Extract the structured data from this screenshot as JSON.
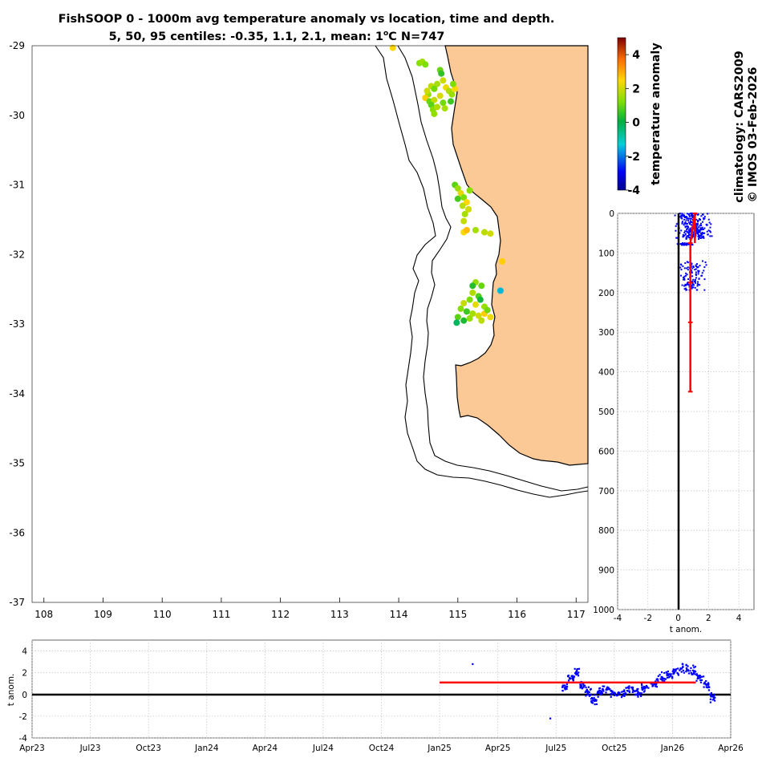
{
  "chart_data": [
    {
      "type": "scatter",
      "panel": "map",
      "title": "FishSOOP 0 - 1000m avg temperature anomaly vs location, time and depth.",
      "subtitle_prefix": "5, 50, 95 centiles: -0.35, 1.1, 2.1, mean: 1",
      "subtitle_sup": "o",
      "subtitle_suffix": "C N=747",
      "xlim": [
        107.8,
        117.2
      ],
      "ylim": [
        -37,
        -29
      ],
      "x_ticks": [
        "108",
        "109",
        "110",
        "111",
        "112",
        "113",
        "114",
        "115",
        "116",
        "117"
      ],
      "y_ticks": [
        "-29",
        "-30",
        "-31",
        "-32",
        "-33",
        "-34",
        "-35",
        "-36",
        "-37"
      ],
      "land_color": "#fbc995",
      "points": [
        {
          "lon": 113.9,
          "lat": -29.03,
          "v": 2.5
        },
        {
          "lon": 114.35,
          "lat": -29.25,
          "v": 1.3
        },
        {
          "lon": 114.4,
          "lat": -29.23,
          "v": 1.5
        },
        {
          "lon": 114.45,
          "lat": -29.27,
          "v": 1.2
        },
        {
          "lon": 114.7,
          "lat": -29.35,
          "v": 1.0
        },
        {
          "lon": 114.72,
          "lat": -29.4,
          "v": 0.5
        },
        {
          "lon": 114.75,
          "lat": -29.5,
          "v": 2.0
        },
        {
          "lon": 114.65,
          "lat": -29.55,
          "v": 1.6
        },
        {
          "lon": 114.55,
          "lat": -29.58,
          "v": 1.8
        },
        {
          "lon": 114.6,
          "lat": -29.62,
          "v": 1.1
        },
        {
          "lon": 114.8,
          "lat": -29.6,
          "v": 2.3
        },
        {
          "lon": 114.85,
          "lat": -29.65,
          "v": 1.7
        },
        {
          "lon": 114.5,
          "lat": -29.7,
          "v": 1.4
        },
        {
          "lon": 114.45,
          "lat": -29.75,
          "v": 2.6
        },
        {
          "lon": 114.52,
          "lat": -29.8,
          "v": 1.0
        },
        {
          "lon": 114.6,
          "lat": -29.78,
          "v": 1.9
        },
        {
          "lon": 114.7,
          "lat": -29.72,
          "v": 2.1
        },
        {
          "lon": 114.9,
          "lat": -29.7,
          "v": 1.5
        },
        {
          "lon": 114.95,
          "lat": -29.62,
          "v": 2.4
        },
        {
          "lon": 114.92,
          "lat": -29.55,
          "v": 1.2
        },
        {
          "lon": 114.55,
          "lat": -29.85,
          "v": 0.9
        },
        {
          "lon": 114.58,
          "lat": -29.92,
          "v": 1.3
        },
        {
          "lon": 114.65,
          "lat": -29.88,
          "v": 1.7
        },
        {
          "lon": 114.75,
          "lat": -29.82,
          "v": 1.1
        },
        {
          "lon": 114.78,
          "lat": -29.9,
          "v": 1.6
        },
        {
          "lon": 114.6,
          "lat": -29.98,
          "v": 1.4
        },
        {
          "lon": 114.88,
          "lat": -29.8,
          "v": 0.6
        },
        {
          "lon": 114.48,
          "lat": -29.65,
          "v": 2.0
        },
        {
          "lon": 114.95,
          "lat": -31.0,
          "v": 0.9
        },
        {
          "lon": 115.0,
          "lat": -31.05,
          "v": 1.5
        },
        {
          "lon": 115.05,
          "lat": -31.12,
          "v": 2.2
        },
        {
          "lon": 115.1,
          "lat": -31.18,
          "v": 1.2
        },
        {
          "lon": 115.15,
          "lat": -31.25,
          "v": 2.5
        },
        {
          "lon": 115.08,
          "lat": -31.3,
          "v": 1.8
        },
        {
          "lon": 115.18,
          "lat": -31.35,
          "v": 2.0
        },
        {
          "lon": 115.12,
          "lat": -31.42,
          "v": 1.6
        },
        {
          "lon": 115.2,
          "lat": -31.08,
          "v": 1.3
        },
        {
          "lon": 115.0,
          "lat": -31.2,
          "v": 0.7
        },
        {
          "lon": 115.1,
          "lat": -31.68,
          "v": 2.4
        },
        {
          "lon": 115.15,
          "lat": -31.65,
          "v": 2.8
        },
        {
          "lon": 115.3,
          "lat": -31.65,
          "v": 1.6
        },
        {
          "lon": 115.45,
          "lat": -31.68,
          "v": 1.8
        },
        {
          "lon": 115.55,
          "lat": -31.7,
          "v": 2.0
        },
        {
          "lon": 115.1,
          "lat": -31.52,
          "v": 1.9
        },
        {
          "lon": 115.75,
          "lat": -32.1,
          "v": 2.6
        },
        {
          "lon": 115.72,
          "lat": -32.52,
          "v": -1.5
        },
        {
          "lon": 115.3,
          "lat": -32.4,
          "v": 1.4
        },
        {
          "lon": 115.4,
          "lat": -32.45,
          "v": 1.0
        },
        {
          "lon": 115.25,
          "lat": -32.55,
          "v": 1.7
        },
        {
          "lon": 115.35,
          "lat": -32.6,
          "v": 0.8
        },
        {
          "lon": 115.2,
          "lat": -32.65,
          "v": 1.2
        },
        {
          "lon": 115.1,
          "lat": -32.7,
          "v": 1.9
        },
        {
          "lon": 115.3,
          "lat": -32.72,
          "v": 2.2
        },
        {
          "lon": 115.45,
          "lat": -32.75,
          "v": 1.5
        },
        {
          "lon": 115.05,
          "lat": -32.78,
          "v": 1.3
        },
        {
          "lon": 115.15,
          "lat": -32.82,
          "v": 0.6
        },
        {
          "lon": 115.25,
          "lat": -32.85,
          "v": 1.6
        },
        {
          "lon": 115.35,
          "lat": -32.88,
          "v": 2.0
        },
        {
          "lon": 115.45,
          "lat": -32.85,
          "v": 2.6
        },
        {
          "lon": 115.5,
          "lat": -32.8,
          "v": 1.1
        },
        {
          "lon": 115.0,
          "lat": -32.9,
          "v": 0.9
        },
        {
          "lon": 115.1,
          "lat": -32.95,
          "v": 0.3
        },
        {
          "lon": 114.98,
          "lat": -32.98,
          "v": -0.2
        },
        {
          "lon": 115.2,
          "lat": -32.92,
          "v": 1.4
        },
        {
          "lon": 115.38,
          "lat": -32.65,
          "v": 0.2
        },
        {
          "lon": 115.25,
          "lat": -32.45,
          "v": 0.4
        },
        {
          "lon": 115.4,
          "lat": -32.95,
          "v": 1.8
        },
        {
          "lon": 115.55,
          "lat": -32.9,
          "v": 2.3
        }
      ]
    },
    {
      "type": "colorbar",
      "label": "temperature anomaly",
      "range": [
        -4,
        5
      ],
      "ticks": [
        "4",
        "2",
        "0",
        "-2",
        "-4"
      ]
    },
    {
      "type": "scatter",
      "panel": "depth",
      "xlabel": "t anom.",
      "xlim": [
        -4,
        5
      ],
      "ylim": [
        0,
        1000
      ],
      "x_ticks": [
        "-4",
        "-2",
        "0",
        "2",
        "4"
      ],
      "y_ticks": [
        "0",
        "100",
        "200",
        "300",
        "400",
        "500",
        "600",
        "700",
        "800",
        "900",
        "1000"
      ],
      "centile_profile": [
        {
          "depth": 0,
          "p5": 0.2,
          "p50": 1.1,
          "p95": 2.1
        },
        {
          "depth": 75,
          "p5": 0.0,
          "p50": 0.8,
          "p95": 1.3
        },
        {
          "depth": 175,
          "p5": 0.2,
          "p50": 0.8,
          "p95": 1.3
        },
        {
          "depth": 275,
          "p5": 0.6,
          "p50": 0.8,
          "p95": 0.95
        },
        {
          "depth": 450,
          "p5": 0.6,
          "p50": 0.8,
          "p95": 0.95
        }
      ]
    },
    {
      "type": "scatter",
      "panel": "time",
      "ylabel": "t anom.",
      "ylim": [
        -4,
        5
      ],
      "y_ticks": [
        "4",
        "2",
        "0",
        "-2",
        "-4"
      ],
      "x_ticks": [
        "Apr23",
        "Jul23",
        "Oct23",
        "Jan24",
        "Apr24",
        "Jul24",
        "Oct24",
        "Jan25",
        "Apr25",
        "Jul25",
        "Oct25",
        "Jan26",
        "Apr26"
      ],
      "mean_line": {
        "start": "Jan25",
        "end": "Feb26",
        "value": 1.1
      },
      "series": [
        {
          "month_index": 22.7,
          "v": 2.8
        },
        {
          "month_index": 26.7,
          "v": -2.2
        },
        {
          "month_index": 27.3,
          "v": 0.6
        },
        {
          "month_index": 27.6,
          "v": 1.5
        },
        {
          "month_index": 27.9,
          "v": 2.0
        },
        {
          "month_index": 28.2,
          "v": 0.8
        },
        {
          "month_index": 28.5,
          "v": 0.3
        },
        {
          "month_index": 28.8,
          "v": -0.5
        },
        {
          "month_index": 29.1,
          "v": 0.2
        },
        {
          "month_index": 29.4,
          "v": 0.6
        },
        {
          "month_index": 29.8,
          "v": 0.1
        },
        {
          "month_index": 30.2,
          "v": 0.0
        },
        {
          "month_index": 30.6,
          "v": 0.4
        },
        {
          "month_index": 31.0,
          "v": 0.2
        },
        {
          "month_index": 31.4,
          "v": 0.7
        },
        {
          "month_index": 31.8,
          "v": 1.0
        },
        {
          "month_index": 32.2,
          "v": 1.5
        },
        {
          "month_index": 32.6,
          "v": 1.8
        },
        {
          "month_index": 33.0,
          "v": 2.1
        },
        {
          "month_index": 33.4,
          "v": 2.4
        },
        {
          "month_index": 33.8,
          "v": 2.2
        },
        {
          "month_index": 34.2,
          "v": 1.6
        },
        {
          "month_index": 34.6,
          "v": 0.9
        },
        {
          "month_index": 34.9,
          "v": -0.2
        }
      ]
    }
  ],
  "watermark": {
    "line1": "climatology: CARS2009",
    "line2": "© IMOS 03-Feb-2026"
  },
  "colors": {
    "obs_point": "#0000ff",
    "mean_line": "#ff0000",
    "zero_line": "#000000"
  }
}
